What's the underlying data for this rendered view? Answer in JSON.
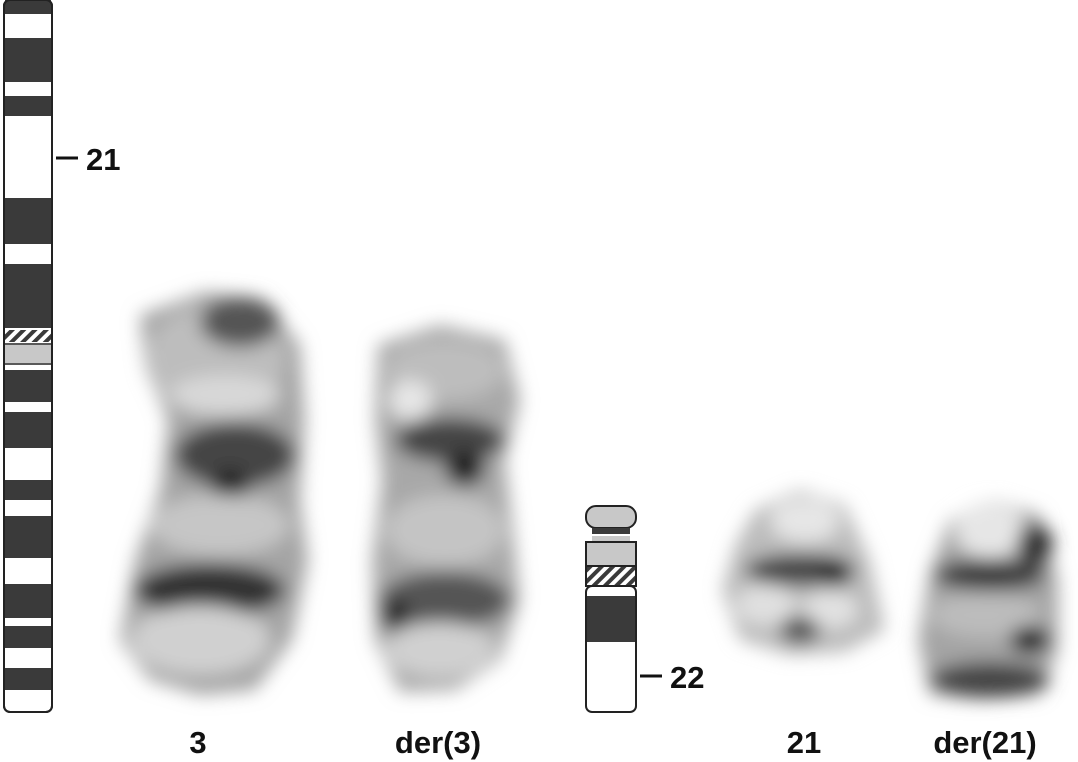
{
  "ideogram_3": {
    "band_label": "21"
  },
  "ideogram_21": {
    "band_label": "22"
  },
  "chromosome_labels": {
    "chr3": "3",
    "der3": "der(3)",
    "chr21": "21",
    "der21": "der(21)"
  },
  "colors": {
    "band_dark": "#3a3a3a",
    "band_light": "#ffffff",
    "band_gray": "#c8c8c8",
    "outline": "#222222"
  }
}
